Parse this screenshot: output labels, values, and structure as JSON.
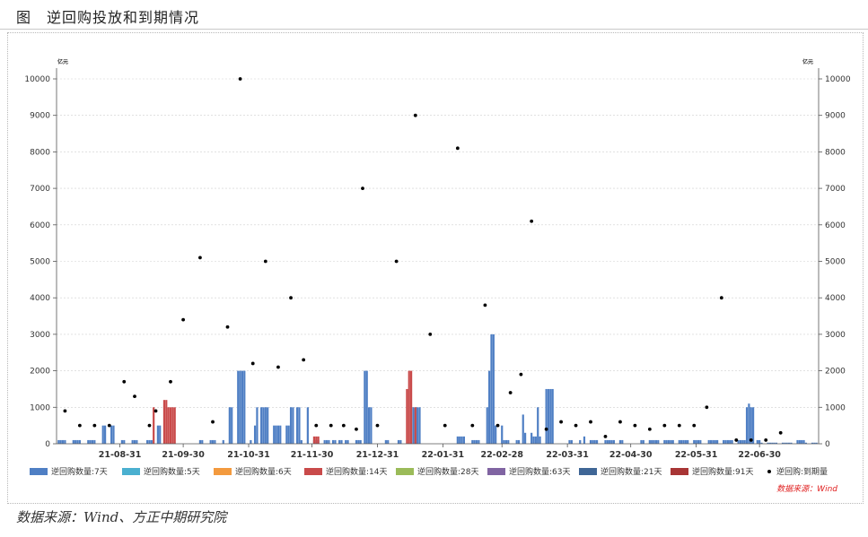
{
  "figure": {
    "title": "图　逆回购投放和到期情况",
    "source_note": "数据来源：Wind、方正中期研究院"
  },
  "chart_data": {
    "type": "bar",
    "unit_left": "亿元",
    "unit_right": "亿元",
    "ylim": [
      0,
      10000
    ],
    "yticks": [
      0,
      1000,
      2000,
      3000,
      4000,
      5000,
      6000,
      7000,
      8000,
      9000,
      10000
    ],
    "x_range": [
      "2021-08-01",
      "2022-07-28"
    ],
    "x_ticks": [
      {
        "date": "2021-08-31",
        "label": "21-08-31"
      },
      {
        "date": "2021-09-30",
        "label": "21-09-30"
      },
      {
        "date": "2021-10-31",
        "label": "21-10-31"
      },
      {
        "date": "2021-11-30",
        "label": "21-11-30"
      },
      {
        "date": "2021-12-31",
        "label": "21-12-31"
      },
      {
        "date": "2022-01-31",
        "label": "22-01-31"
      },
      {
        "date": "2022-02-28",
        "label": "22-02-28"
      },
      {
        "date": "2022-03-31",
        "label": "22-03-31"
      },
      {
        "date": "2022-04-30",
        "label": "22-04-30"
      },
      {
        "date": "2022-05-31",
        "label": "22-05-31"
      },
      {
        "date": "2022-06-30",
        "label": "22-06-30"
      }
    ],
    "chart_source": "数据来源：Wind",
    "legend": [
      {
        "name": "逆回购数量:7天",
        "color": "#4f7fc4",
        "kind": "bar"
      },
      {
        "name": "逆回购数量:5天",
        "color": "#4ab0d0",
        "kind": "bar"
      },
      {
        "name": "逆回购数量:6天",
        "color": "#f39a3e",
        "kind": "bar"
      },
      {
        "name": "逆回购数量:14天",
        "color": "#c94a4a",
        "kind": "bar"
      },
      {
        "name": "逆回购数量:28天",
        "color": "#9bbb59",
        "kind": "bar"
      },
      {
        "name": "逆回购数量:63天",
        "color": "#8064a2",
        "kind": "bar"
      },
      {
        "name": "逆回购数量:21天",
        "color": "#3f6696",
        "kind": "bar"
      },
      {
        "name": "逆回购数量:91天",
        "color": "#a83535",
        "kind": "bar"
      },
      {
        "name": "逆回购:到期量",
        "color": "#000000",
        "kind": "dot"
      }
    ],
    "series": [
      {
        "name": "逆回购数量:7天",
        "color": "#4f7fc4",
        "points": [
          [
            "2021-08-02",
            100
          ],
          [
            "2021-08-03",
            100
          ],
          [
            "2021-08-04",
            100
          ],
          [
            "2021-08-05",
            100
          ],
          [
            "2021-08-09",
            100
          ],
          [
            "2021-08-10",
            100
          ],
          [
            "2021-08-11",
            100
          ],
          [
            "2021-08-12",
            100
          ],
          [
            "2021-08-16",
            100
          ],
          [
            "2021-08-17",
            100
          ],
          [
            "2021-08-18",
            100
          ],
          [
            "2021-08-19",
            100
          ],
          [
            "2021-08-23",
            500
          ],
          [
            "2021-08-24",
            500
          ],
          [
            "2021-08-27",
            500
          ],
          [
            "2021-08-28",
            500
          ],
          [
            "2021-09-01",
            100
          ],
          [
            "2021-09-02",
            100
          ],
          [
            "2021-09-06",
            100
          ],
          [
            "2021-09-07",
            100
          ],
          [
            "2021-09-08",
            100
          ],
          [
            "2021-09-13",
            100
          ],
          [
            "2021-09-14",
            100
          ],
          [
            "2021-09-15",
            100
          ],
          [
            "2021-09-18",
            500
          ],
          [
            "2021-09-19",
            500
          ],
          [
            "2021-10-08",
            100
          ],
          [
            "2021-10-09",
            100
          ],
          [
            "2021-10-13",
            100
          ],
          [
            "2021-10-14",
            100
          ],
          [
            "2021-10-15",
            100
          ],
          [
            "2021-10-19",
            100
          ],
          [
            "2021-10-22",
            1000
          ],
          [
            "2021-10-23",
            1000
          ],
          [
            "2021-10-26",
            2000
          ],
          [
            "2021-10-27",
            2000
          ],
          [
            "2021-10-28",
            2000
          ],
          [
            "2021-10-29",
            2000
          ],
          [
            "2021-11-01",
            100
          ],
          [
            "2021-11-03",
            500
          ],
          [
            "2021-11-04",
            1000
          ],
          [
            "2021-11-06",
            1000
          ],
          [
            "2021-11-07",
            1000
          ],
          [
            "2021-11-08",
            1000
          ],
          [
            "2021-11-09",
            1000
          ],
          [
            "2021-11-12",
            500
          ],
          [
            "2021-11-13",
            500
          ],
          [
            "2021-11-14",
            500
          ],
          [
            "2021-11-15",
            500
          ],
          [
            "2021-11-18",
            500
          ],
          [
            "2021-11-19",
            500
          ],
          [
            "2021-11-20",
            1000
          ],
          [
            "2021-11-21",
            1000
          ],
          [
            "2021-11-23",
            1000
          ],
          [
            "2021-11-24",
            1000
          ],
          [
            "2021-11-25",
            100
          ],
          [
            "2021-11-28",
            1000
          ],
          [
            "2021-12-01",
            100
          ],
          [
            "2021-12-02",
            100
          ],
          [
            "2021-12-03",
            100
          ],
          [
            "2021-12-06",
            100
          ],
          [
            "2021-12-07",
            100
          ],
          [
            "2021-12-08",
            100
          ],
          [
            "2021-12-10",
            100
          ],
          [
            "2021-12-11",
            100
          ],
          [
            "2021-12-13",
            100
          ],
          [
            "2021-12-14",
            100
          ],
          [
            "2021-12-16",
            100
          ],
          [
            "2021-12-17",
            100
          ],
          [
            "2021-12-21",
            100
          ],
          [
            "2021-12-22",
            100
          ],
          [
            "2021-12-23",
            100
          ],
          [
            "2021-12-25",
            2000
          ],
          [
            "2021-12-26",
            2000
          ],
          [
            "2021-12-27",
            1000
          ],
          [
            "2021-12-28",
            1000
          ],
          [
            "2022-01-04",
            100
          ],
          [
            "2022-01-05",
            100
          ],
          [
            "2022-01-10",
            100
          ],
          [
            "2022-01-11",
            100
          ],
          [
            "2022-01-17",
            1000
          ],
          [
            "2022-01-18",
            1000
          ],
          [
            "2022-01-19",
            1000
          ],
          [
            "2022-01-20",
            1000
          ],
          [
            "2022-02-07",
            200
          ],
          [
            "2022-02-08",
            200
          ],
          [
            "2022-02-09",
            200
          ],
          [
            "2022-02-10",
            200
          ],
          [
            "2022-02-14",
            100
          ],
          [
            "2022-02-15",
            100
          ],
          [
            "2022-02-16",
            100
          ],
          [
            "2022-02-17",
            100
          ],
          [
            "2022-02-21",
            1000
          ],
          [
            "2022-02-22",
            2000
          ],
          [
            "2022-02-23",
            3000
          ],
          [
            "2022-02-24",
            3000
          ],
          [
            "2022-02-25",
            500
          ],
          [
            "2022-02-28",
            500
          ],
          [
            "2022-03-01",
            100
          ],
          [
            "2022-03-02",
            100
          ],
          [
            "2022-03-03",
            100
          ],
          [
            "2022-03-07",
            100
          ],
          [
            "2022-03-08",
            100
          ],
          [
            "2022-03-10",
            800
          ],
          [
            "2022-03-11",
            300
          ],
          [
            "2022-03-14",
            300
          ],
          [
            "2022-03-15",
            200
          ],
          [
            "2022-03-16",
            200
          ],
          [
            "2022-03-17",
            1000
          ],
          [
            "2022-03-18",
            200
          ],
          [
            "2022-03-21",
            1500
          ],
          [
            "2022-03-22",
            1500
          ],
          [
            "2022-03-23",
            1500
          ],
          [
            "2022-03-24",
            1500
          ],
          [
            "2022-04-01",
            100
          ],
          [
            "2022-04-02",
            100
          ],
          [
            "2022-04-06",
            100
          ],
          [
            "2022-04-08",
            200
          ],
          [
            "2022-04-11",
            100
          ],
          [
            "2022-04-12",
            100
          ],
          [
            "2022-04-13",
            100
          ],
          [
            "2022-04-14",
            100
          ],
          [
            "2022-04-18",
            100
          ],
          [
            "2022-04-19",
            100
          ],
          [
            "2022-04-20",
            100
          ],
          [
            "2022-04-21",
            100
          ],
          [
            "2022-04-22",
            100
          ],
          [
            "2022-04-25",
            100
          ],
          [
            "2022-04-26",
            100
          ],
          [
            "2022-05-05",
            100
          ],
          [
            "2022-05-06",
            100
          ],
          [
            "2022-05-09",
            100
          ],
          [
            "2022-05-10",
            100
          ],
          [
            "2022-05-11",
            100
          ],
          [
            "2022-05-12",
            100
          ],
          [
            "2022-05-13",
            100
          ],
          [
            "2022-05-16",
            100
          ],
          [
            "2022-05-17",
            100
          ],
          [
            "2022-05-18",
            100
          ],
          [
            "2022-05-19",
            100
          ],
          [
            "2022-05-20",
            100
          ],
          [
            "2022-05-23",
            100
          ],
          [
            "2022-05-24",
            100
          ],
          [
            "2022-05-25",
            100
          ],
          [
            "2022-05-26",
            100
          ],
          [
            "2022-05-27",
            100
          ],
          [
            "2022-05-30",
            100
          ],
          [
            "2022-05-31",
            100
          ],
          [
            "2022-06-01",
            100
          ],
          [
            "2022-06-02",
            100
          ],
          [
            "2022-06-06",
            100
          ],
          [
            "2022-06-07",
            100
          ],
          [
            "2022-06-08",
            100
          ],
          [
            "2022-06-09",
            100
          ],
          [
            "2022-06-10",
            100
          ],
          [
            "2022-06-13",
            100
          ],
          [
            "2022-06-14",
            100
          ],
          [
            "2022-06-15",
            100
          ],
          [
            "2022-06-16",
            100
          ],
          [
            "2022-06-17",
            100
          ],
          [
            "2022-06-20",
            100
          ],
          [
            "2022-06-21",
            100
          ],
          [
            "2022-06-22",
            100
          ],
          [
            "2022-06-23",
            100
          ],
          [
            "2022-06-24",
            1000
          ],
          [
            "2022-06-25",
            1100
          ],
          [
            "2022-06-26",
            1000
          ],
          [
            "2022-06-27",
            1000
          ],
          [
            "2022-06-29",
            100
          ],
          [
            "2022-06-30",
            100
          ],
          [
            "2022-07-01",
            30
          ],
          [
            "2022-07-04",
            30
          ],
          [
            "2022-07-05",
            30
          ],
          [
            "2022-07-06",
            30
          ],
          [
            "2022-07-07",
            30
          ],
          [
            "2022-07-08",
            30
          ],
          [
            "2022-07-11",
            30
          ],
          [
            "2022-07-12",
            30
          ],
          [
            "2022-07-13",
            30
          ],
          [
            "2022-07-14",
            30
          ],
          [
            "2022-07-15",
            30
          ],
          [
            "2022-07-18",
            100
          ],
          [
            "2022-07-19",
            100
          ],
          [
            "2022-07-20",
            100
          ],
          [
            "2022-07-21",
            100
          ],
          [
            "2022-07-22",
            30
          ],
          [
            "2022-07-25",
            30
          ],
          [
            "2022-07-26",
            30
          ],
          [
            "2022-07-27",
            30
          ]
        ]
      },
      {
        "name": "逆回购数量:14天",
        "color": "#c94a4a",
        "points": [
          [
            "2021-09-16",
            1000
          ],
          [
            "2021-09-21",
            1200
          ],
          [
            "2021-09-22",
            1200
          ],
          [
            "2021-09-23",
            1000
          ],
          [
            "2021-09-24",
            1000
          ],
          [
            "2021-09-25",
            1000
          ],
          [
            "2021-09-26",
            1000
          ],
          [
            "2021-12-01",
            200
          ],
          [
            "2021-12-02",
            200
          ],
          [
            "2021-12-03",
            200
          ],
          [
            "2022-01-14",
            1500
          ],
          [
            "2022-01-15",
            2000
          ],
          [
            "2022-01-16",
            2000
          ],
          [
            "2022-01-18",
            1000
          ]
        ]
      }
    ],
    "maturity": {
      "name": "逆回购:到期量",
      "points": [
        [
          "2021-08-05",
          900
        ],
        [
          "2021-08-12",
          500
        ],
        [
          "2021-08-19",
          500
        ],
        [
          "2021-08-26",
          500
        ],
        [
          "2021-09-02",
          1700
        ],
        [
          "2021-09-07",
          1300
        ],
        [
          "2021-09-14",
          500
        ],
        [
          "2021-09-17",
          900
        ],
        [
          "2021-09-24",
          1700
        ],
        [
          "2021-09-30",
          3400
        ],
        [
          "2021-10-08",
          5100
        ],
        [
          "2021-10-14",
          600
        ],
        [
          "2021-10-21",
          3200
        ],
        [
          "2021-10-27",
          10000
        ],
        [
          "2021-11-02",
          2200
        ],
        [
          "2021-11-08",
          5000
        ],
        [
          "2021-11-14",
          2100
        ],
        [
          "2021-11-20",
          4000
        ],
        [
          "2021-11-26",
          2300
        ],
        [
          "2021-12-02",
          500
        ],
        [
          "2021-12-09",
          500
        ],
        [
          "2021-12-15",
          500
        ],
        [
          "2021-12-21",
          400
        ],
        [
          "2021-12-24",
          7000
        ],
        [
          "2021-12-31",
          500
        ],
        [
          "2022-01-09",
          5000
        ],
        [
          "2022-01-18",
          9000
        ],
        [
          "2022-01-25",
          3000
        ],
        [
          "2022-02-01",
          500
        ],
        [
          "2022-02-07",
          8100
        ],
        [
          "2022-02-14",
          500
        ],
        [
          "2022-02-20",
          3800
        ],
        [
          "2022-02-26",
          500
        ],
        [
          "2022-03-04",
          1400
        ],
        [
          "2022-03-09",
          1900
        ],
        [
          "2022-03-14",
          6100
        ],
        [
          "2022-03-21",
          400
        ],
        [
          "2022-03-28",
          600
        ],
        [
          "2022-04-04",
          500
        ],
        [
          "2022-04-11",
          600
        ],
        [
          "2022-04-18",
          200
        ],
        [
          "2022-04-25",
          600
        ],
        [
          "2022-05-02",
          500
        ],
        [
          "2022-05-09",
          400
        ],
        [
          "2022-05-16",
          500
        ],
        [
          "2022-05-23",
          500
        ],
        [
          "2022-05-30",
          500
        ],
        [
          "2022-06-05",
          1000
        ],
        [
          "2022-06-12",
          4000
        ],
        [
          "2022-06-19",
          100
        ],
        [
          "2022-06-26",
          100
        ],
        [
          "2022-07-03",
          100
        ],
        [
          "2022-07-10",
          300
        ]
      ]
    }
  }
}
